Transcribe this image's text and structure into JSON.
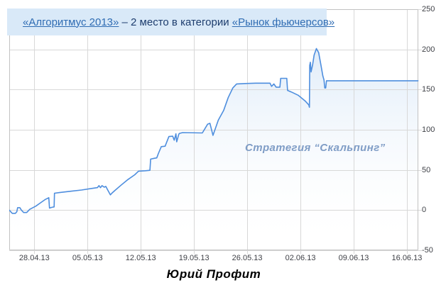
{
  "header": {
    "link1": "«Алгоритмус 2013»",
    "middle": " – 2 место в категории ",
    "link2": "«Рынок фьючерсов»",
    "bg_color": "#d9e9f8",
    "text_color": "#1d3d6e",
    "link_color": "#2f6cb3",
    "trophy_icon": "trophy-icon"
  },
  "caption": {
    "text": "Юрий Профит"
  },
  "chart_data": {
    "type": "line",
    "title": "",
    "annotation": "Стратегия “Скальпинг”",
    "annotation_color": "#7f9dc6",
    "xlabel": "",
    "ylabel": "",
    "x_tick_labels": [
      "28.04.13",
      "05.05.13",
      "12.05.13",
      "19.05.13",
      "26.05.13",
      "02.06.13",
      "09.06.13",
      "16.06.13"
    ],
    "x_tick_days": [
      0,
      7,
      14,
      21,
      28,
      35,
      42,
      49
    ],
    "x_domain_days": [
      -3.3,
      50.5
    ],
    "ylim": [
      -50,
      250
    ],
    "y_ticks": [
      250,
      200,
      150,
      100,
      50,
      0,
      -50
    ],
    "y_tick_labels": [
      "250",
      "200",
      "150",
      "100",
      "50",
      "0",
      "-50"
    ],
    "grid": true,
    "legend": "none",
    "line_color": "#4e8ede",
    "grid_color": "#d8d8d8",
    "border_color": "#c2c2c2",
    "axis_label_color": "#3f4147",
    "area_gradient_top": "#c7ddf4",
    "area_gradient_bottom": "#ffffff",
    "series": [
      {
        "name": "equity-curve",
        "points": [
          [
            -3.3,
            0
          ],
          [
            -3.1,
            -2
          ],
          [
            -2.9,
            -4
          ],
          [
            -2.5,
            -4
          ],
          [
            -2.3,
            -2
          ],
          [
            -2.2,
            3
          ],
          [
            -1.9,
            3
          ],
          [
            -1.7,
            0
          ],
          [
            -1.4,
            -3
          ],
          [
            -1.0,
            -3
          ],
          [
            -0.6,
            1
          ],
          [
            0.2,
            5
          ],
          [
            0.8,
            9
          ],
          [
            1.4,
            13
          ],
          [
            1.9,
            15.5
          ],
          [
            2.0,
            2.5
          ],
          [
            2.3,
            3.5
          ],
          [
            2.6,
            4
          ],
          [
            2.65,
            21
          ],
          [
            3.4,
            22
          ],
          [
            4.8,
            23.5
          ],
          [
            6.2,
            25
          ],
          [
            7.6,
            27
          ],
          [
            8.3,
            28
          ],
          [
            8.5,
            30.5
          ],
          [
            8.7,
            28
          ],
          [
            8.9,
            30.5
          ],
          [
            9.2,
            28.5
          ],
          [
            9.4,
            29.5
          ],
          [
            9.6,
            26
          ],
          [
            10.0,
            19
          ],
          [
            10.2,
            21
          ],
          [
            10.6,
            24.5
          ],
          [
            11.4,
            31
          ],
          [
            12.3,
            38
          ],
          [
            13.2,
            44
          ],
          [
            13.7,
            48.5
          ],
          [
            14.6,
            49
          ],
          [
            15.2,
            49.5
          ],
          [
            15.3,
            63.5
          ],
          [
            15.8,
            64.5
          ],
          [
            16.1,
            65
          ],
          [
            16.2,
            67.5
          ],
          [
            16.3,
            70
          ],
          [
            16.7,
            79
          ],
          [
            17.2,
            79.5
          ],
          [
            17.7,
            91.5
          ],
          [
            18.2,
            92
          ],
          [
            18.4,
            87
          ],
          [
            18.55,
            92
          ],
          [
            18.62,
            95
          ],
          [
            18.72,
            85
          ],
          [
            19.0,
            94.5
          ],
          [
            19.1,
            95.5
          ],
          [
            19.5,
            96.5
          ],
          [
            22.1,
            96
          ],
          [
            22.8,
            107
          ],
          [
            23.1,
            108
          ],
          [
            23.5,
            93
          ],
          [
            24.2,
            112
          ],
          [
            24.9,
            124
          ],
          [
            25.5,
            140
          ],
          [
            26.1,
            152
          ],
          [
            26.6,
            157
          ],
          [
            27.7,
            157.5
          ],
          [
            29.1,
            158
          ],
          [
            31.0,
            158
          ],
          [
            31.2,
            154
          ],
          [
            31.5,
            157
          ],
          [
            31.8,
            153
          ],
          [
            32.3,
            153
          ],
          [
            32.4,
            164
          ],
          [
            33.2,
            164
          ],
          [
            33.3,
            149
          ],
          [
            33.8,
            147
          ],
          [
            34.7,
            143
          ],
          [
            35.6,
            136
          ],
          [
            36.1,
            131
          ],
          [
            36.18,
            128
          ],
          [
            36.22,
            180
          ],
          [
            36.3,
            184
          ],
          [
            36.4,
            172
          ],
          [
            36.6,
            181
          ],
          [
            36.8,
            193
          ],
          [
            37.1,
            201
          ],
          [
            37.4,
            196
          ],
          [
            37.7,
            180
          ],
          [
            37.95,
            167
          ],
          [
            38.1,
            162
          ],
          [
            38.2,
            152
          ],
          [
            38.32,
            152
          ],
          [
            38.42,
            161
          ],
          [
            39.3,
            161
          ],
          [
            50.46,
            161
          ]
        ]
      }
    ]
  }
}
